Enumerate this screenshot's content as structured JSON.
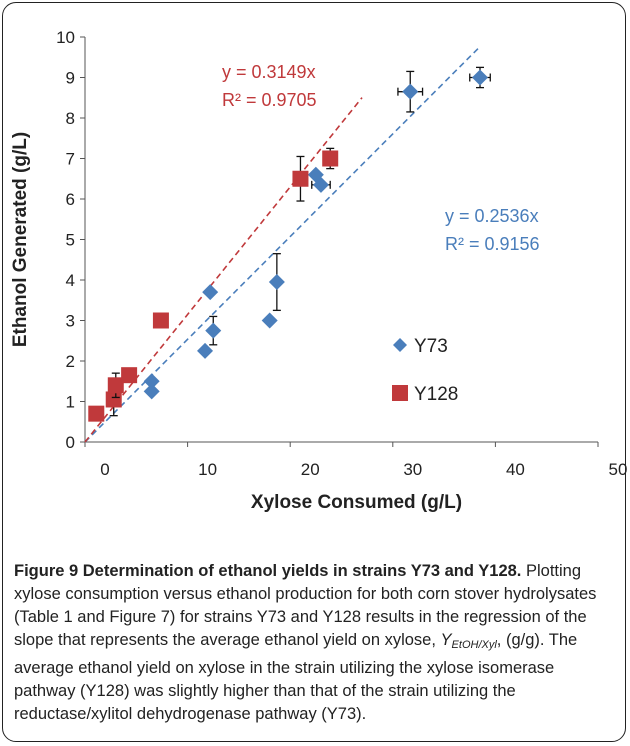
{
  "chart_data": {
    "type": "scatter",
    "xlabel": "Xylose Consumed (g/L)",
    "ylabel": "Ethanol Generated (g/L)",
    "xlim": [
      0,
      50
    ],
    "ylim": [
      0,
      10
    ],
    "xticks": [
      "0",
      "10",
      "20",
      "30",
      "40",
      "50"
    ],
    "yticks": [
      "0",
      "1",
      "2",
      "3",
      "4",
      "5",
      "6",
      "7",
      "8",
      "9",
      "10"
    ],
    "grid": false,
    "legend_position": "right-middle",
    "series": [
      {
        "name": "Y73",
        "marker": "diamond",
        "color": "#4a7ebb",
        "points": [
          {
            "x": 6.5,
            "y": 1.25
          },
          {
            "x": 6.5,
            "y": 1.5
          },
          {
            "x": 11.7,
            "y": 2.25
          },
          {
            "x": 12.2,
            "y": 3.7
          },
          {
            "x": 12.5,
            "y": 2.75,
            "err": 0.35
          },
          {
            "x": 18.0,
            "y": 3.0
          },
          {
            "x": 18.7,
            "y": 3.95,
            "err": 0.7
          },
          {
            "x": 22.5,
            "y": 6.6
          },
          {
            "x": 23.0,
            "y": 6.35,
            "xerr": 0.9
          },
          {
            "x": 31.7,
            "y": 8.65,
            "err": 0.5,
            "xerr": 1.2
          },
          {
            "x": 38.5,
            "y": 9.0,
            "err": 0.25,
            "xerr": 1.0
          }
        ],
        "trendline": {
          "equation": "y = 0.2536x",
          "r2": "R² = 0.9156",
          "slope": 0.2536,
          "x_end": 38.5
        }
      },
      {
        "name": "Y128",
        "marker": "square",
        "color": "#c0393b",
        "points": [
          {
            "x": 1.1,
            "y": 0.7
          },
          {
            "x": 2.8,
            "y": 1.05,
            "err": 0.4
          },
          {
            "x": 3.0,
            "y": 1.4,
            "err": 0.3
          },
          {
            "x": 4.3,
            "y": 1.65
          },
          {
            "x": 7.4,
            "y": 3.0
          },
          {
            "x": 21.0,
            "y": 6.5,
            "err": 0.55
          },
          {
            "x": 23.9,
            "y": 7.0,
            "err": 0.25
          }
        ],
        "trendline": {
          "equation": "y = 0.3149x",
          "r2": "R² = 0.9705",
          "slope": 0.3149,
          "x_end": 27
        }
      }
    ]
  },
  "caption": {
    "title": "Figure 9 Determination of ethanol yields in strains Y73 and Y128.",
    "body_before": "Plotting xylose consumption versus ethanol production for both corn stover hydrolysates (Table 1 and Figure 7) for strains Y73 and Y128 results in the regression of the slope that represents the average ethanol yield on xylose,",
    "symbol_main": "Y",
    "symbol_sub": "EtOH/Xyl",
    "body_after": ", (g/g). The average ethanol yield on xylose in the strain utilizing the xylose isomerase pathway (Y128) was slightly higher than that of the strain utilizing the reductase/xylitol dehydrogenase pathway (Y73)."
  }
}
